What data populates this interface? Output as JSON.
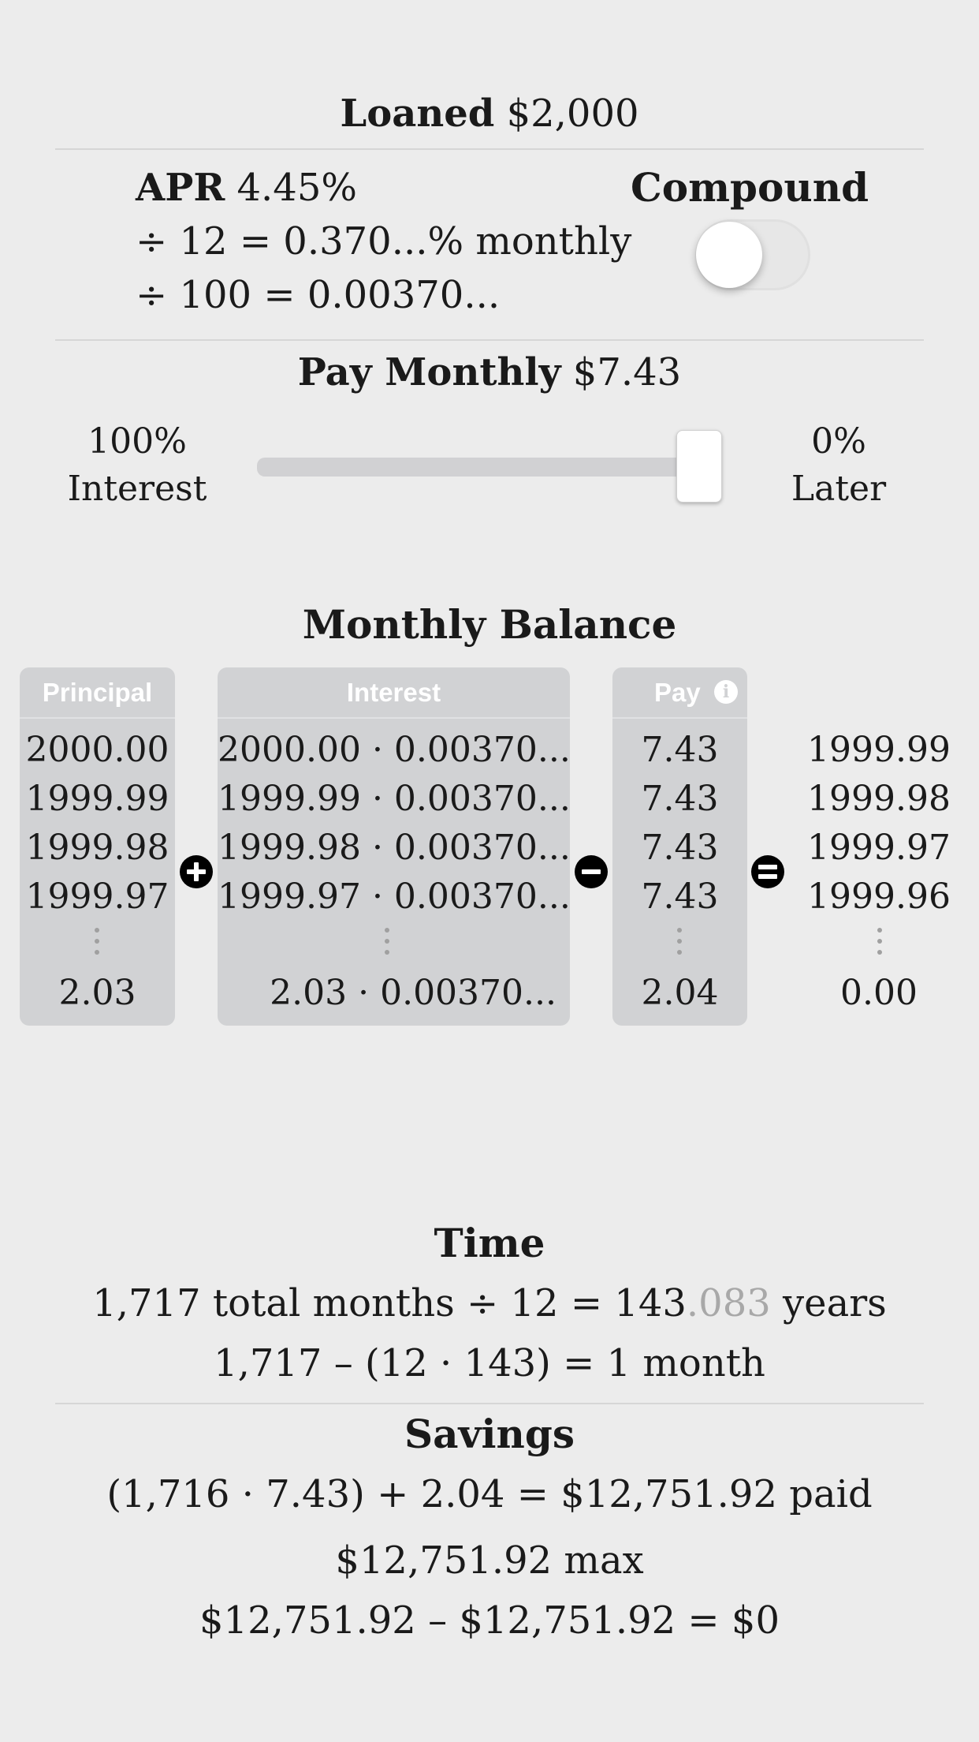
{
  "loan": {
    "label": "Loaned",
    "amount": "$2,000"
  },
  "apr": {
    "label": "APR",
    "value": "4.45%",
    "line2": "÷ 12 = 0.370...% monthly",
    "line3": "÷ 100 = 0.00370..."
  },
  "compound": {
    "label": "Compound",
    "enabled": false
  },
  "payment": {
    "label": "Pay Monthly",
    "amount": "$7.43"
  },
  "slider": {
    "left_top": "100%",
    "left_bottom": "Interest",
    "right_top": "0%",
    "right_bottom": "Later",
    "level_percent": 100
  },
  "balance": {
    "title": "Monthly Balance",
    "headers": {
      "principal": "Principal",
      "interest": "Interest",
      "pay": "Pay"
    },
    "principal": [
      "2000.00",
      "1999.99",
      "1999.98",
      "1999.97",
      "2.03"
    ],
    "interest": [
      "2000.00 · 0.00370...",
      "1999.99 · 0.00370...",
      "1999.98 · 0.00370...",
      "1999.97 · 0.00370...",
      "2.03 · 0.00370..."
    ],
    "pay": [
      "7.43",
      "7.43",
      "7.43",
      "7.43",
      "2.04"
    ],
    "result": [
      "1999.99",
      "1999.98",
      "1999.97",
      "1999.96",
      "0.00"
    ]
  },
  "time": {
    "title": "Time",
    "line1_a": "1,717 total months ÷ 12 = 143",
    "line1_fraction": ".083",
    "line1_b": " years",
    "line2": "1,717 – (12 · 143) = 1 month"
  },
  "savings": {
    "title": "Savings",
    "line1": "(1,716 · 7.43) + 2.04 = $12,751.92 paid",
    "line2": "$12,751.92 max",
    "line3": "$12,751.92 – $12,751.92 = $0"
  }
}
